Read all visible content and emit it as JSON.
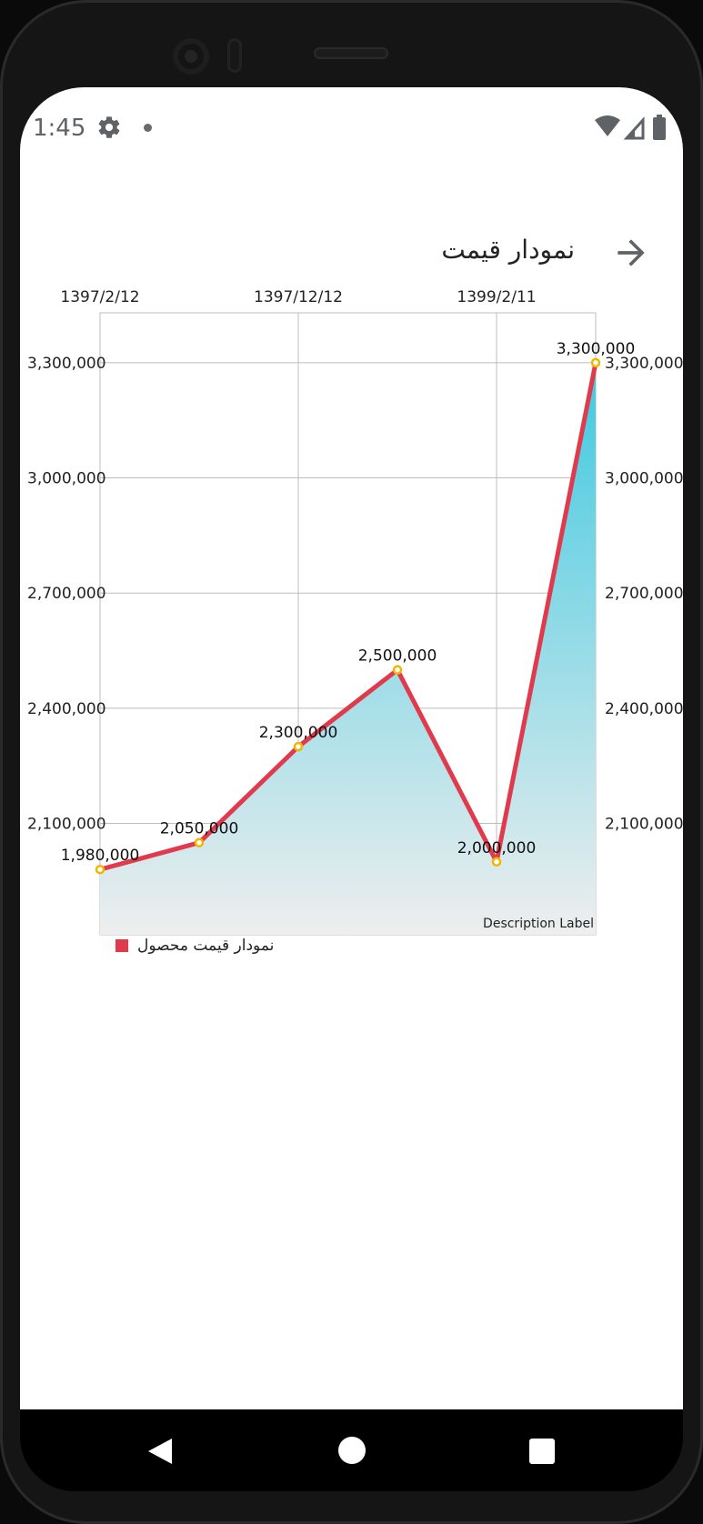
{
  "status_bar": {
    "time": "1:45",
    "icons": [
      "gear-icon",
      "notification-dot-icon",
      "wifi-icon",
      "signal-icon",
      "battery-icon"
    ]
  },
  "app_bar": {
    "title": "نمودار قیمت",
    "back_icon": "arrow-right-icon"
  },
  "chart_data": {
    "type": "line",
    "fill": "gradient area",
    "x": [
      "1397/2/12",
      "",
      "1397/12/12",
      "",
      "1399/2/11",
      ""
    ],
    "x_tick_labels": [
      "1397/2/12",
      "1397/12/12",
      "1399/2/11"
    ],
    "series": [
      {
        "name": "نمودار قیمت محصول",
        "values": [
          1980000,
          2050000,
          2300000,
          2500000,
          2000000,
          3300000
        ],
        "color": "#e03a4c"
      }
    ],
    "data_labels": [
      "1,980,000",
      "2,050,000",
      "2,300,000",
      "2,500,000",
      "2,000,000",
      "3,300,000"
    ],
    "y_ticks": [
      "2,100,000",
      "2,400,000",
      "2,700,000",
      "3,000,000",
      "3,300,000"
    ],
    "y_tick_values": [
      2100000,
      2400000,
      2700000,
      3000000,
      3300000
    ],
    "ylim": [
      1810000,
      3430000
    ],
    "description": "Description Label",
    "legend_position": "bottom-left",
    "grid": true,
    "colors": {
      "line": "#e03a4c",
      "point_stroke": "#f2b600",
      "fill_top": "#3fc9e0",
      "fill_bottom": "#eeeeee",
      "grid": "#bdbdbd"
    }
  },
  "legend": {
    "label": "نمودار قیمت محصول"
  },
  "nav_bar": {
    "buttons": [
      "back-triangle-icon",
      "home-circle-icon",
      "recents-square-icon"
    ]
  }
}
